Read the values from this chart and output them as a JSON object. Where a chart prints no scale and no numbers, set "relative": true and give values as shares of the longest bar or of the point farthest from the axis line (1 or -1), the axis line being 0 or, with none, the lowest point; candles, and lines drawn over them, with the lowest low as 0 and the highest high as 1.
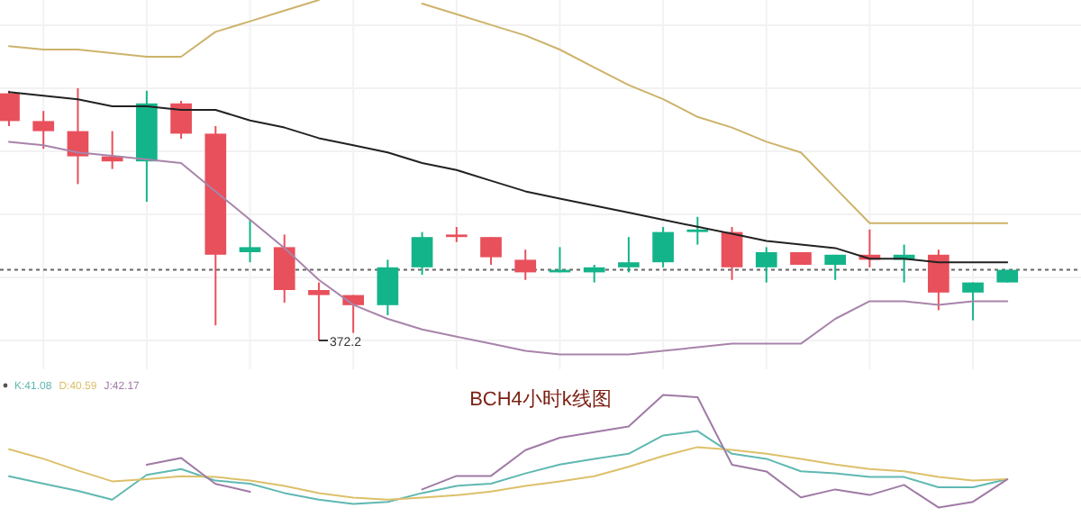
{
  "chart_data": [
    {
      "type": "candlestick",
      "relative": true,
      "grid": true,
      "categories": [
        null,
        null,
        null,
        null,
        null,
        null,
        null,
        null,
        null,
        null,
        null,
        null,
        null,
        null,
        null,
        null,
        null,
        null,
        null,
        null,
        null,
        null,
        null,
        null,
        null,
        null,
        null,
        null,
        null,
        null
      ],
      "ohlc": [
        [
          0.98,
          0.99,
          0.85,
          0.87
        ],
        [
          0.87,
          0.91,
          0.76,
          0.83
        ],
        [
          0.83,
          1.0,
          0.62,
          0.73
        ],
        [
          0.73,
          0.83,
          0.68,
          0.71
        ],
        [
          0.71,
          0.99,
          0.55,
          0.94
        ],
        [
          0.94,
          0.95,
          0.8,
          0.82
        ],
        [
          0.82,
          0.85,
          0.06,
          0.34
        ],
        [
          0.35,
          0.48,
          0.31,
          0.37
        ],
        [
          0.37,
          0.42,
          0.15,
          0.2
        ],
        [
          0.2,
          0.23,
          0,
          0.18
        ],
        [
          0.18,
          0.18,
          0.03,
          0.14
        ],
        [
          0.14,
          0.32,
          0.1,
          0.29
        ],
        [
          0.29,
          0.43,
          0.26,
          0.41
        ],
        [
          0.42,
          0.45,
          0.39,
          0.41
        ],
        [
          0.41,
          0.41,
          0.3,
          0.33
        ],
        [
          0.32,
          0.36,
          0.24,
          0.27
        ],
        [
          0.27,
          0.37,
          0.27,
          0.28
        ],
        [
          0.27,
          0.3,
          0.23,
          0.29
        ],
        [
          0.29,
          0.41,
          0.27,
          0.31
        ],
        [
          0.31,
          0.45,
          0.29,
          0.43
        ],
        [
          0.43,
          0.49,
          0.38,
          0.44
        ],
        [
          0.43,
          0.45,
          0.24,
          0.29
        ],
        [
          0.29,
          0.37,
          0.23,
          0.35
        ],
        [
          0.35,
          0.35,
          0.3,
          0.3
        ],
        [
          0.3,
          0.34,
          0.24,
          0.34
        ],
        [
          0.34,
          0.44,
          0.29,
          0.32
        ],
        [
          0.32,
          0.38,
          0.23,
          0.34
        ],
        [
          0.34,
          0.36,
          0.12,
          0.19
        ],
        [
          0.19,
          0.23,
          0.08,
          0.23
        ],
        [
          0.23,
          0.28,
          0.23,
          0.28
        ]
      ],
      "colors": [
        "#e8505b",
        "#e8505b",
        "#e8505b",
        "#e8505b",
        "#14b48a",
        "#e8505b",
        "#e8505b",
        "#14b48a",
        "#e8505b",
        "#e8505b",
        "#e8505b",
        "#14b48a",
        "#14b48a",
        "#e8505b",
        "#e8505b",
        "#e8505b",
        "#14b48a",
        "#14b48a",
        "#14b48a",
        "#14b48a",
        "#14b48a",
        "#e8505b",
        "#14b48a",
        "#e8505b",
        "#14b48a",
        "#e8505b",
        "#14b48a",
        "#e8505b",
        "#14b48a",
        "#14b48a"
      ],
      "ref_lines": [
        {
          "axis": "y",
          "value": 0.28,
          "color": "#666666",
          "line_style": "dotted"
        }
      ],
      "annotations": [
        "372.2"
      ]
    },
    {
      "type": "line",
      "relative": true,
      "categories": [
        null,
        null,
        null,
        null,
        null,
        null,
        null,
        null,
        null,
        null,
        null,
        null,
        null,
        null,
        null,
        null,
        null,
        null,
        null,
        null,
        null,
        null,
        null,
        null,
        null,
        null,
        null,
        null,
        null,
        null
      ],
      "series": [
        {
          "color": "#222222",
          "values": [
            0.74,
            0.73,
            0.72,
            0.7,
            0.7,
            0.69,
            0.69,
            0.66,
            0.64,
            0.61,
            0.59,
            0.57,
            0.54,
            0.52,
            0.49,
            0.46,
            0.44,
            0.42,
            0.4,
            0.38,
            0.36,
            0.34,
            0.32,
            0.31,
            0.3,
            0.27,
            0.27,
            0.26,
            0.26,
            0.26
          ]
        },
        {
          "color": "#cdb36a",
          "values": [
            0.87,
            0.86,
            0.86,
            0.85,
            0.84,
            0.84,
            0.91,
            0.94,
            0.97,
            1.0,
            null,
            null,
            0.99,
            0.96,
            0.93,
            0.9,
            0.86,
            0.81,
            0.76,
            0.72,
            0.67,
            0.64,
            0.6,
            0.57,
            0.47,
            0.37,
            0.37,
            0.37,
            0.37,
            0.37
          ]
        },
        {
          "color": "#a884ab",
          "values": [
            0.6,
            0.59,
            0.57,
            0.56,
            0.55,
            0.54,
            0.46,
            0.38,
            0.3,
            0.21,
            0.14,
            0.1,
            0.07,
            0.05,
            0.03,
            0.01,
            0,
            0,
            0,
            0.01,
            0.02,
            0.03,
            0.03,
            0.03,
            0.1,
            0.15,
            0.15,
            0.14,
            0.15,
            0.15
          ]
        }
      ]
    },
    {
      "type": "line",
      "relative": true,
      "title": "BCH4小时k线图",
      "categories": [
        null,
        null,
        null,
        null,
        null,
        null,
        null,
        null,
        null,
        null,
        null,
        null,
        null,
        null,
        null,
        null,
        null,
        null,
        null,
        null,
        null,
        null,
        null,
        null,
        null,
        null,
        null,
        null,
        null,
        null
      ],
      "series": [
        {
          "name": "K:41.08",
          "color": "#5fb8b2",
          "values": [
            0.38,
            0.28,
            0.18,
            0.06,
            0.4,
            0.48,
            0.32,
            0.28,
            0.15,
            0.06,
            0,
            0.03,
            0.15,
            0.25,
            0.28,
            0.42,
            0.54,
            0.62,
            0.69,
            0.94,
            1.0,
            0.69,
            0.62,
            0.45,
            0.42,
            0.37,
            0.37,
            0.23,
            0.23,
            0.34
          ]
        },
        {
          "name": "D:40.59",
          "color": "#dcc06a",
          "values": [
            0.75,
            0.62,
            0.46,
            0.31,
            0.34,
            0.38,
            0.37,
            0.32,
            0.25,
            0.15,
            0.09,
            0.06,
            0.09,
            0.12,
            0.17,
            0.25,
            0.31,
            0.38,
            0.51,
            0.66,
            0.78,
            0.74,
            0.69,
            0.62,
            0.54,
            0.48,
            0.45,
            0.37,
            0.32,
            0.34
          ]
        }
      ]
    },
    {
      "type": "line",
      "relative": true,
      "categories": [
        null,
        null,
        null,
        null,
        null,
        null,
        null,
        null,
        null,
        null,
        null,
        null,
        null,
        null,
        null,
        null,
        null,
        null,
        null,
        null,
        null,
        null,
        null,
        null,
        null,
        null,
        null,
        null,
        null,
        null
      ],
      "series": [
        {
          "name": "J:42.17",
          "color": "#a07aa6",
          "values": [
            null,
            null,
            null,
            null,
            0.38,
            0.44,
            0.21,
            0.14,
            null,
            null,
            null,
            null,
            0.16,
            0.28,
            0.28,
            0.51,
            0.62,
            0.67,
            0.72,
            1.0,
            0.98,
            0.38,
            0.32,
            0.09,
            0.16,
            0.11,
            0.2,
            0,
            0.05,
            0.25
          ]
        }
      ]
    }
  ]
}
